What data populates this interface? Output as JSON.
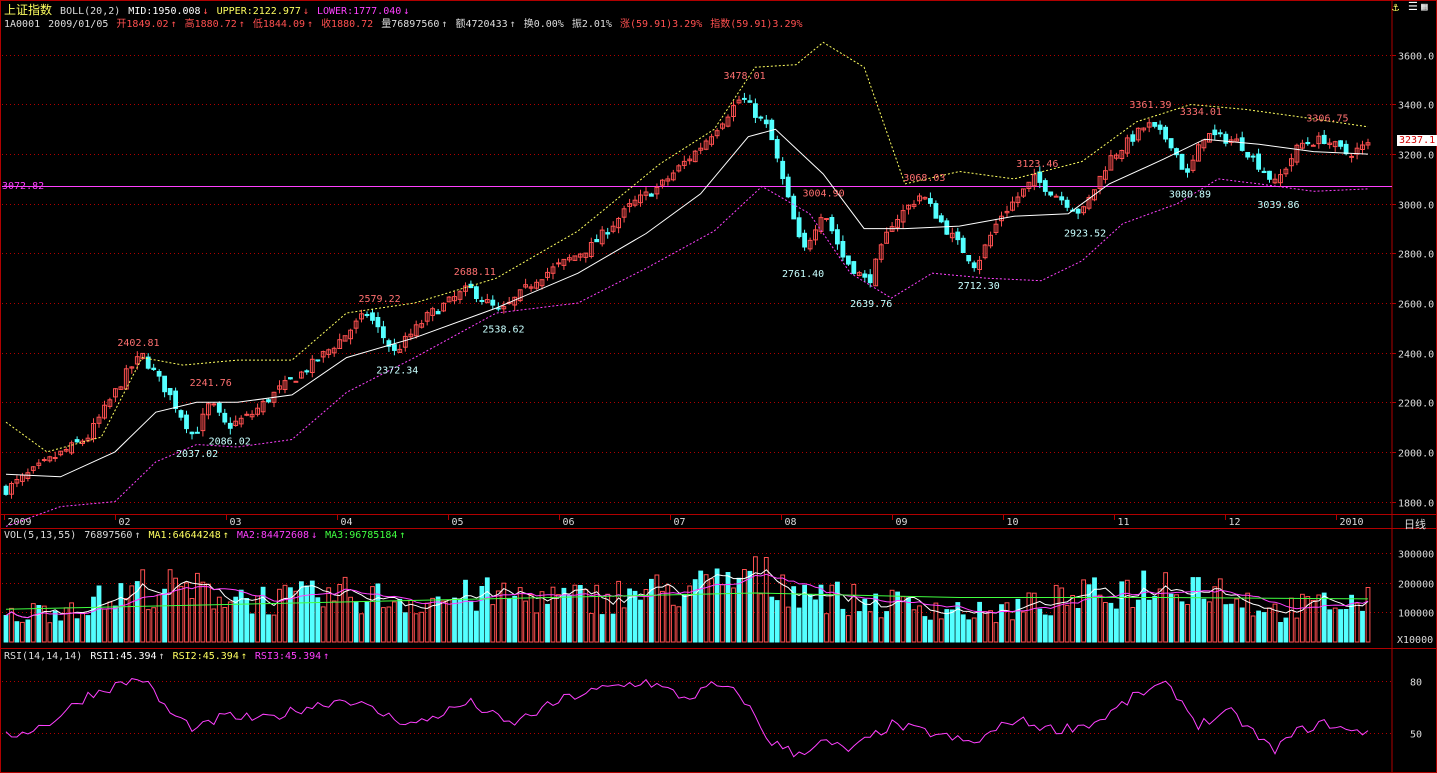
{
  "header": {
    "name": "上证指数",
    "indicator": "BOLL(20,2)",
    "mid": "MID:1950.008",
    "upper": "UPPER:2122.977",
    "lower": "LOWER:1777.040",
    "code": "1A0001",
    "date": "2009/01/05",
    "open": "开1849.02",
    "high": "高1880.72",
    "low": "低1844.09",
    "close": "收1880.72",
    "vol": "量76897560",
    "amount": "额4720433",
    "turnover": "换0.00%",
    "amplitude": "振2.01%",
    "change": "涨(59.91)3.29%",
    "index_change": "指数(59.91)3.29%"
  },
  "cursor_price": "3072.82",
  "last_price_tag": "3237.1",
  "period_label": "日线",
  "vol_header": {
    "label": "VOL(5,13,55)",
    "vol": "76897560",
    "ma1": "MA1:64644248",
    "ma2": "MA2:84472608",
    "ma3": "MA3:96785184"
  },
  "vol_unit": "X10000",
  "rsi_header": {
    "label": "RSI(14,14,14)",
    "rsi1": "RSI1:45.394",
    "rsi2": "RSI2:45.394",
    "rsi3": "RSI3:45.394"
  },
  "colors": {
    "up": "#ff5050",
    "down": "#54ffff",
    "mid": "#ffffff",
    "upper": "#ffff60",
    "lower": "#ff40ff",
    "grid": "#b00000",
    "vol_ma1": "#ffffff",
    "vol_ma2": "#ff40ff",
    "vol_ma3": "#40ff40",
    "rsi": "#ff40ff",
    "cursor": "#ff40ff"
  },
  "chart_data": [
    {
      "type": "candlestick",
      "title": "上证指数 BOLL(20,2)",
      "x_ticks": [
        "2009",
        "02",
        "03",
        "04",
        "05",
        "06",
        "07",
        "08",
        "09",
        "10",
        "11",
        "12",
        "2010"
      ],
      "y_ticks": [
        "1800.0",
        "2000.0",
        "2200.0",
        "2400.0",
        "2600.0",
        "2800.0",
        "3000.0",
        "3200.0",
        "3400.0",
        "3600.0"
      ],
      "ylim": [
        1750,
        3700
      ],
      "annotations": [
        {
          "text": "2402.81",
          "kind": "high",
          "t": 0.095,
          "value": 2402.81
        },
        {
          "text": "2037.02",
          "kind": "low",
          "t": 0.138,
          "value": 2037.02
        },
        {
          "text": "2241.76",
          "kind": "high",
          "t": 0.148,
          "value": 2241.76
        },
        {
          "text": "2086.02",
          "kind": "low",
          "t": 0.162,
          "value": 2086.02
        },
        {
          "text": "2579.22",
          "kind": "high",
          "t": 0.272,
          "value": 2579.22
        },
        {
          "text": "2372.34",
          "kind": "low",
          "t": 0.285,
          "value": 2372.34
        },
        {
          "text": "2688.11",
          "kind": "high",
          "t": 0.342,
          "value": 2688.11
        },
        {
          "text": "2538.62",
          "kind": "low",
          "t": 0.363,
          "value": 2538.62
        },
        {
          "text": "3478.01",
          "kind": "high",
          "t": 0.54,
          "value": 3478.01
        },
        {
          "text": "3004.90",
          "kind": "high",
          "t": 0.598,
          "value": 3004.9
        },
        {
          "text": "2761.40",
          "kind": "low",
          "t": 0.583,
          "value": 2761.4
        },
        {
          "text": "2639.76",
          "kind": "low",
          "t": 0.633,
          "value": 2639.76
        },
        {
          "text": "3068.03",
          "kind": "high",
          "t": 0.672,
          "value": 3068.03
        },
        {
          "text": "2712.30",
          "kind": "low",
          "t": 0.712,
          "value": 2712.3
        },
        {
          "text": "3123.46",
          "kind": "high",
          "t": 0.755,
          "value": 3123.46
        },
        {
          "text": "2923.52",
          "kind": "low",
          "t": 0.79,
          "value": 2923.52
        },
        {
          "text": "3361.39",
          "kind": "high",
          "t": 0.838,
          "value": 3361.39
        },
        {
          "text": "3334.01",
          "kind": "high",
          "t": 0.875,
          "value": 3334.01
        },
        {
          "text": "3080.89",
          "kind": "low",
          "t": 0.867,
          "value": 3080.89
        },
        {
          "text": "3039.86",
          "kind": "low",
          "t": 0.932,
          "value": 3039.86
        },
        {
          "text": "3306.75",
          "kind": "high",
          "t": 0.968,
          "value": 3306.75
        }
      ],
      "close_path": [
        [
          0.0,
          1849
        ],
        [
          0.03,
          1960
        ],
        [
          0.06,
          2060
        ],
        [
          0.09,
          2330
        ],
        [
          0.1,
          2390
        ],
        [
          0.12,
          2230
        ],
        [
          0.138,
          2060
        ],
        [
          0.15,
          2200
        ],
        [
          0.162,
          2100
        ],
        [
          0.18,
          2150
        ],
        [
          0.2,
          2250
        ],
        [
          0.22,
          2330
        ],
        [
          0.245,
          2450
        ],
        [
          0.265,
          2560
        ],
        [
          0.285,
          2400
        ],
        [
          0.31,
          2550
        ],
        [
          0.34,
          2660
        ],
        [
          0.363,
          2560
        ],
        [
          0.39,
          2700
        ],
        [
          0.43,
          2830
        ],
        [
          0.46,
          3000
        ],
        [
          0.48,
          3070
        ],
        [
          0.51,
          3230
        ],
        [
          0.54,
          3430
        ],
        [
          0.56,
          3300
        ],
        [
          0.585,
          2800
        ],
        [
          0.6,
          2980
        ],
        [
          0.615,
          2780
        ],
        [
          0.633,
          2680
        ],
        [
          0.65,
          2920
        ],
        [
          0.672,
          3040
        ],
        [
          0.69,
          2900
        ],
        [
          0.712,
          2750
        ],
        [
          0.73,
          2950
        ],
        [
          0.755,
          3100
        ],
        [
          0.79,
          2960
        ],
        [
          0.81,
          3180
        ],
        [
          0.838,
          3320
        ],
        [
          0.855,
          3250
        ],
        [
          0.867,
          3110
        ],
        [
          0.88,
          3280
        ],
        [
          0.905,
          3250
        ],
        [
          0.932,
          3080
        ],
        [
          0.95,
          3240
        ],
        [
          0.968,
          3260
        ],
        [
          0.985,
          3200
        ],
        [
          1.0,
          3237
        ]
      ],
      "mid_path": [
        [
          0.0,
          1910
        ],
        [
          0.04,
          1900
        ],
        [
          0.08,
          2000
        ],
        [
          0.11,
          2160
        ],
        [
          0.14,
          2200
        ],
        [
          0.17,
          2200
        ],
        [
          0.21,
          2230
        ],
        [
          0.25,
          2380
        ],
        [
          0.3,
          2460
        ],
        [
          0.36,
          2580
        ],
        [
          0.42,
          2720
        ],
        [
          0.47,
          2880
        ],
        [
          0.51,
          3040
        ],
        [
          0.545,
          3270
        ],
        [
          0.565,
          3300
        ],
        [
          0.6,
          3120
        ],
        [
          0.63,
          2900
        ],
        [
          0.66,
          2900
        ],
        [
          0.7,
          2910
        ],
        [
          0.74,
          2950
        ],
        [
          0.78,
          2960
        ],
        [
          0.81,
          3080
        ],
        [
          0.85,
          3180
        ],
        [
          0.88,
          3260
        ],
        [
          0.92,
          3240
        ],
        [
          0.96,
          3210
        ],
        [
          1.0,
          3200
        ]
      ],
      "upper_path": [
        [
          0.0,
          2120
        ],
        [
          0.03,
          2000
        ],
        [
          0.07,
          2060
        ],
        [
          0.1,
          2380
        ],
        [
          0.13,
          2350
        ],
        [
          0.17,
          2370
        ],
        [
          0.21,
          2370
        ],
        [
          0.25,
          2560
        ],
        [
          0.3,
          2600
        ],
        [
          0.36,
          2700
        ],
        [
          0.42,
          2890
        ],
        [
          0.48,
          3160
        ],
        [
          0.52,
          3300
        ],
        [
          0.55,
          3550
        ],
        [
          0.58,
          3560
        ],
        [
          0.6,
          3650
        ],
        [
          0.63,
          3550
        ],
        [
          0.66,
          3080
        ],
        [
          0.7,
          3130
        ],
        [
          0.74,
          3100
        ],
        [
          0.79,
          3170
        ],
        [
          0.83,
          3330
        ],
        [
          0.87,
          3400
        ],
        [
          0.91,
          3380
        ],
        [
          0.95,
          3350
        ],
        [
          1.0,
          3310
        ]
      ],
      "lower_path": [
        [
          0.0,
          1700
        ],
        [
          0.04,
          1780
        ],
        [
          0.08,
          1800
        ],
        [
          0.11,
          1960
        ],
        [
          0.14,
          2030
        ],
        [
          0.17,
          2020
        ],
        [
          0.21,
          2050
        ],
        [
          0.25,
          2240
        ],
        [
          0.3,
          2380
        ],
        [
          0.36,
          2560
        ],
        [
          0.42,
          2600
        ],
        [
          0.47,
          2740
        ],
        [
          0.52,
          2890
        ],
        [
          0.555,
          3070
        ],
        [
          0.59,
          2960
        ],
        [
          0.62,
          2720
        ],
        [
          0.65,
          2620
        ],
        [
          0.68,
          2720
        ],
        [
          0.72,
          2700
        ],
        [
          0.76,
          2690
        ],
        [
          0.79,
          2770
        ],
        [
          0.82,
          2920
        ],
        [
          0.86,
          3000
        ],
        [
          0.89,
          3100
        ],
        [
          0.92,
          3080
        ],
        [
          0.96,
          3050
        ],
        [
          1.0,
          3060
        ]
      ]
    },
    {
      "type": "bar",
      "title": "VOL(5,13,55)",
      "y_ticks": [
        "100000",
        "200000",
        "300000"
      ],
      "ylim": [
        0,
        330000
      ],
      "volume_path": [
        [
          0.0,
          90000
        ],
        [
          0.08,
          160000
        ],
        [
          0.1,
          200000
        ],
        [
          0.15,
          180000
        ],
        [
          0.2,
          150000
        ],
        [
          0.25,
          170000
        ],
        [
          0.3,
          150000
        ],
        [
          0.36,
          170000
        ],
        [
          0.42,
          155000
        ],
        [
          0.47,
          180000
        ],
        [
          0.52,
          200000
        ],
        [
          0.545,
          240000
        ],
        [
          0.58,
          200000
        ],
        [
          0.62,
          150000
        ],
        [
          0.68,
          130000
        ],
        [
          0.72,
          100000
        ],
        [
          0.76,
          140000
        ],
        [
          0.8,
          170000
        ],
        [
          0.84,
          210000
        ],
        [
          0.87,
          220000
        ],
        [
          0.9,
          180000
        ],
        [
          0.93,
          110000
        ],
        [
          0.97,
          140000
        ],
        [
          1.0,
          145000
        ]
      ],
      "ma3_path": [
        [
          0.0,
          110000
        ],
        [
          0.2,
          130000
        ],
        [
          0.4,
          150000
        ],
        [
          0.55,
          165000
        ],
        [
          0.7,
          150000
        ],
        [
          0.85,
          150000
        ],
        [
          1.0,
          145000
        ]
      ]
    },
    {
      "type": "line",
      "title": "RSI(14,14,14)",
      "y_ticks": [
        "50",
        "80"
      ],
      "ylim": [
        30,
        90
      ],
      "rsi_path": [
        [
          0.0,
          48
        ],
        [
          0.03,
          55
        ],
        [
          0.06,
          72
        ],
        [
          0.09,
          80
        ],
        [
          0.1,
          82
        ],
        [
          0.12,
          62
        ],
        [
          0.14,
          52
        ],
        [
          0.16,
          60
        ],
        [
          0.19,
          58
        ],
        [
          0.22,
          65
        ],
        [
          0.25,
          70
        ],
        [
          0.28,
          60
        ],
        [
          0.3,
          55
        ],
        [
          0.34,
          68
        ],
        [
          0.37,
          55
        ],
        [
          0.41,
          70
        ],
        [
          0.44,
          76
        ],
        [
          0.47,
          80
        ],
        [
          0.5,
          70
        ],
        [
          0.52,
          78
        ],
        [
          0.54,
          72
        ],
        [
          0.56,
          46
        ],
        [
          0.58,
          38
        ],
        [
          0.6,
          45
        ],
        [
          0.62,
          40
        ],
        [
          0.65,
          55
        ],
        [
          0.68,
          50
        ],
        [
          0.71,
          44
        ],
        [
          0.74,
          58
        ],
        [
          0.77,
          52
        ],
        [
          0.8,
          56
        ],
        [
          0.83,
          72
        ],
        [
          0.85,
          78
        ],
        [
          0.86,
          72
        ],
        [
          0.875,
          55
        ],
        [
          0.9,
          62
        ],
        [
          0.93,
          40
        ],
        [
          0.95,
          52
        ],
        [
          0.97,
          56
        ],
        [
          0.99,
          50
        ],
        [
          1.0,
          52
        ]
      ]
    }
  ]
}
